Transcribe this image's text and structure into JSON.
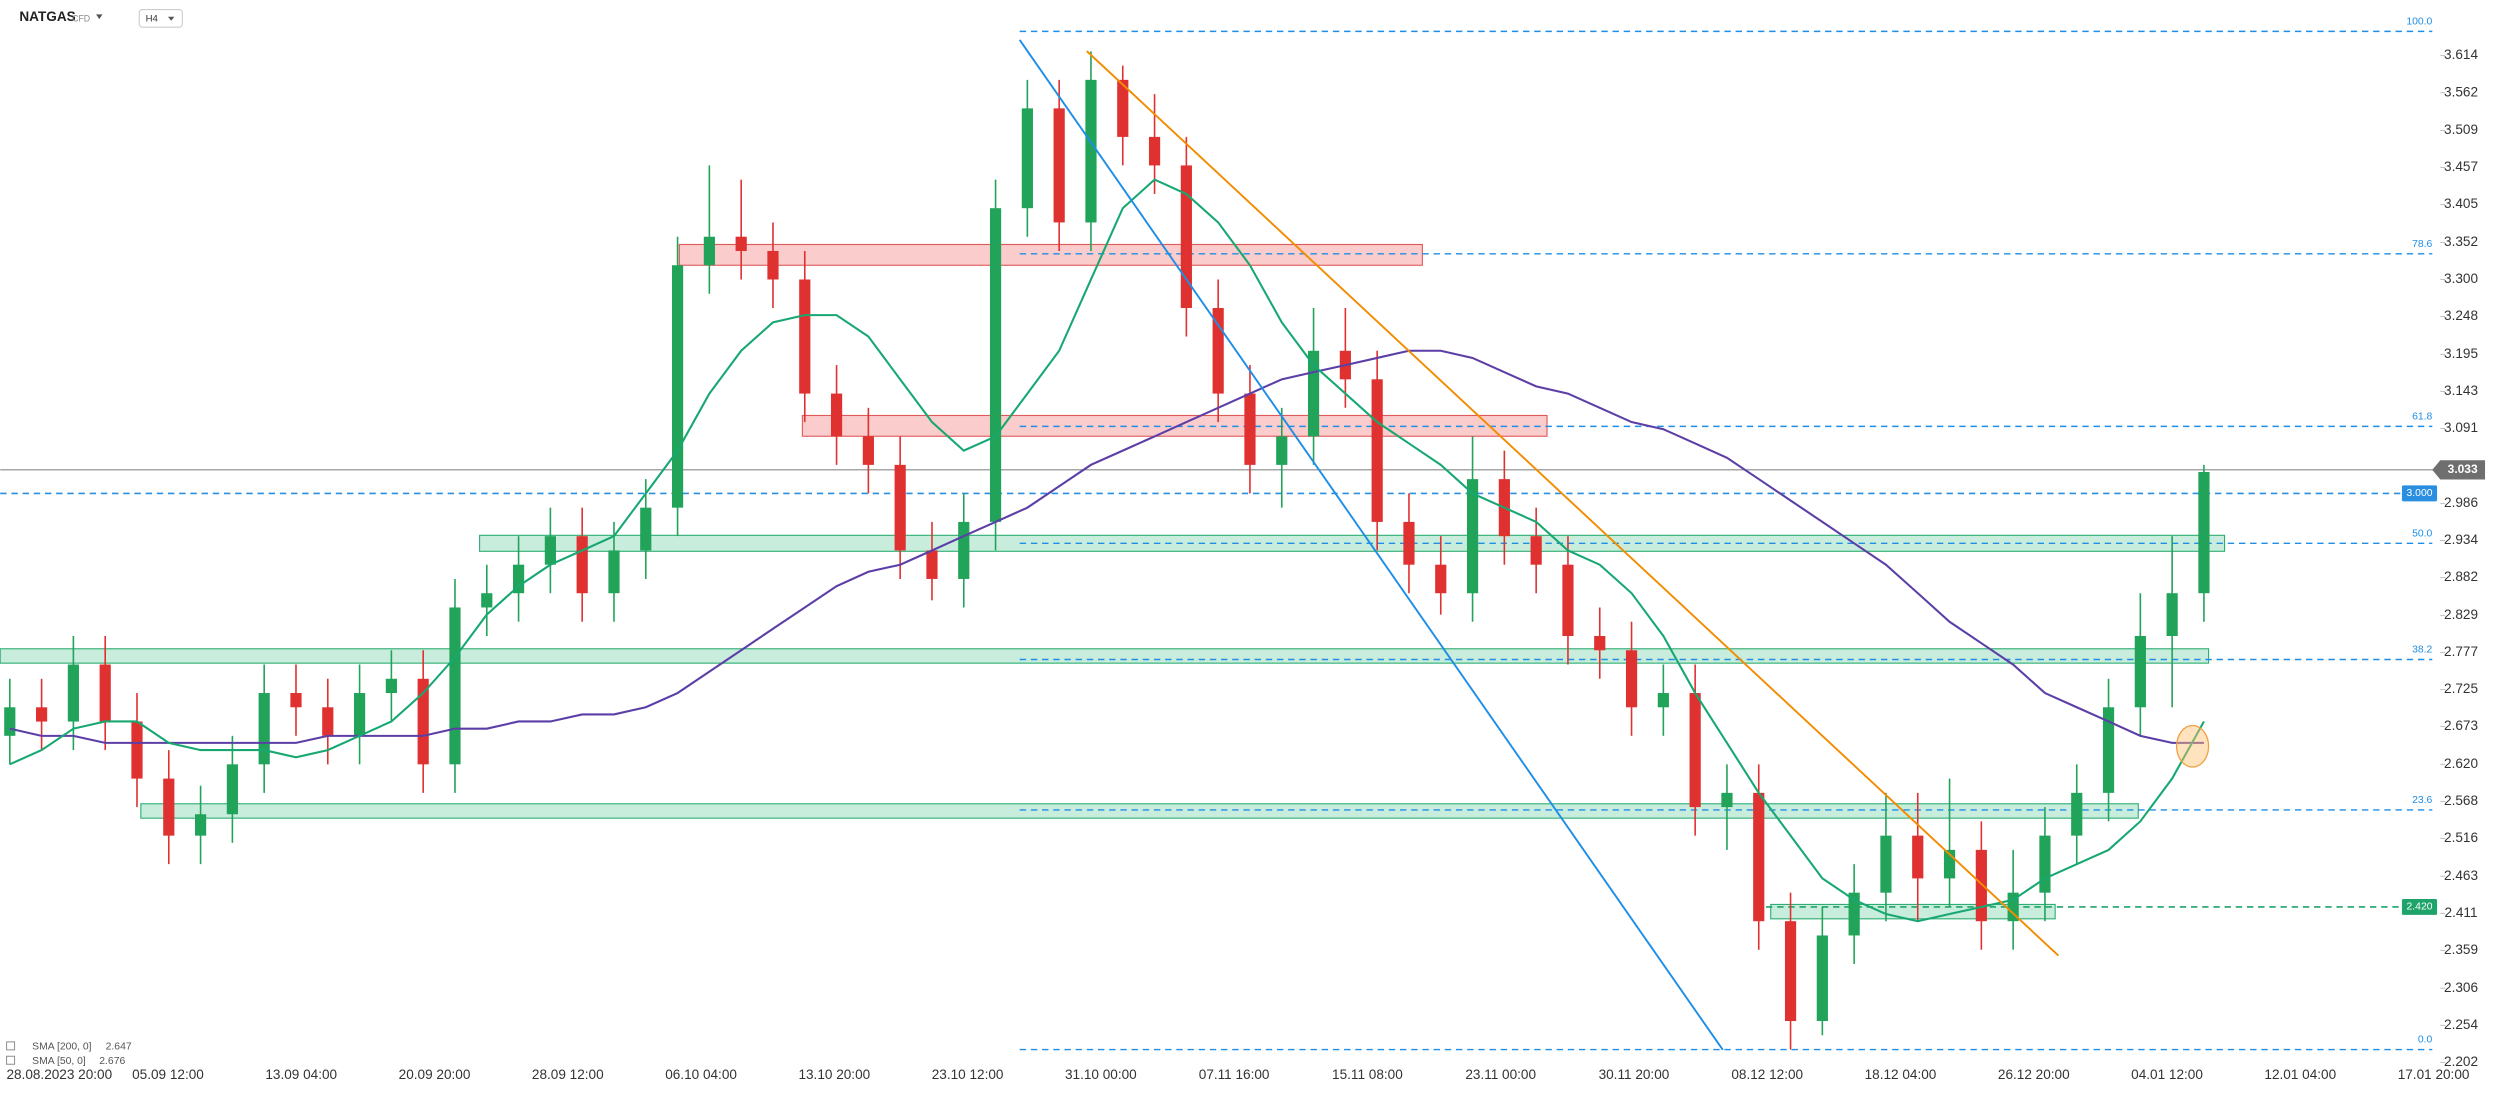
{
  "chart_data": {
    "type": "candlestick",
    "symbol": "NATGAS",
    "instrument": "CFD",
    "timeframe": "H4",
    "ylim": [
      2.168,
      3.692
    ],
    "yticks": [
      3.614,
      3.562,
      3.509,
      3.457,
      3.405,
      3.352,
      {
        "value": 3.3,
        "label": "3.300"
      },
      3.248,
      3.195,
      3.143,
      3.091,
      2.986,
      2.934,
      2.882,
      2.829,
      2.777,
      2.725,
      2.673,
      {
        "value": 2.62,
        "label": "2.620"
      },
      2.568,
      2.516,
      2.463,
      2.411,
      2.359,
      2.306,
      2.254,
      2.202
    ],
    "x_labels": [
      "28.08.2023  20:00",
      "05.09  12:00",
      "13.09  04:00",
      "20.09  20:00",
      "28.09  12:00",
      "06.10  04:00",
      "13.10  20:00",
      "23.10  12:00",
      "31.10  00:00",
      "07.11  16:00",
      "15.11  08:00",
      "23.11  00:00",
      "30.11  20:00",
      "08.12  12:00",
      "18.12  04:00",
      "26.12  20:00",
      "04.01  12:00",
      "12.01  04:00",
      "17.01  20:00"
    ],
    "up_color": "#22a35a",
    "down_color": "#e03131",
    "open": [
      2.66,
      2.7,
      2.68,
      2.76,
      2.68,
      2.6,
      2.52,
      2.55,
      2.62,
      2.72,
      2.7,
      2.66,
      2.72,
      2.74,
      2.62,
      2.84,
      2.86,
      2.9,
      2.94,
      2.86,
      2.92,
      2.98,
      3.32,
      3.36,
      3.34,
      3.3,
      3.14,
      3.08,
      3.04,
      2.92,
      2.88,
      2.96,
      3.4,
      3.54,
      3.38,
      3.58,
      3.5,
      3.46,
      3.26,
      3.14,
      3.04,
      3.08,
      3.2,
      3.16,
      2.96,
      2.9,
      2.86,
      3.02,
      2.94,
      2.9,
      2.8,
      2.78,
      2.7,
      2.72,
      2.56,
      2.58,
      2.4,
      2.26,
      2.38,
      2.44,
      2.52,
      2.46,
      2.5,
      2.4,
      2.44,
      2.52,
      2.58,
      2.7,
      2.8,
      2.86
    ],
    "high": [
      2.74,
      2.74,
      2.8,
      2.8,
      2.72,
      2.64,
      2.59,
      2.66,
      2.76,
      2.76,
      2.74,
      2.76,
      2.78,
      2.78,
      2.88,
      2.9,
      2.94,
      2.98,
      2.98,
      2.96,
      3.02,
      3.36,
      3.46,
      3.44,
      3.38,
      3.34,
      3.18,
      3.12,
      3.08,
      2.96,
      3.0,
      3.44,
      3.58,
      3.58,
      3.62,
      3.6,
      3.56,
      3.5,
      3.3,
      3.18,
      3.12,
      3.26,
      3.26,
      3.2,
      3.0,
      2.94,
      3.08,
      3.06,
      2.98,
      2.94,
      2.84,
      2.82,
      2.76,
      2.76,
      2.62,
      2.62,
      2.44,
      2.42,
      2.48,
      2.58,
      2.58,
      2.6,
      2.54,
      2.5,
      2.56,
      2.62,
      2.74,
      2.86,
      2.94,
      3.04
    ],
    "low": [
      2.62,
      2.64,
      2.64,
      2.64,
      2.56,
      2.48,
      2.48,
      2.51,
      2.58,
      2.66,
      2.62,
      2.62,
      2.68,
      2.58,
      2.58,
      2.8,
      2.82,
      2.86,
      2.82,
      2.82,
      2.88,
      2.94,
      3.28,
      3.3,
      3.26,
      3.1,
      3.04,
      3.0,
      2.88,
      2.85,
      2.84,
      2.92,
      3.36,
      3.34,
      3.34,
      3.46,
      3.42,
      3.22,
      3.1,
      3.0,
      2.98,
      3.04,
      3.12,
      2.92,
      2.86,
      2.83,
      2.82,
      2.9,
      2.86,
      2.76,
      2.74,
      2.66,
      2.66,
      2.52,
      2.5,
      2.36,
      2.22,
      2.24,
      2.34,
      2.4,
      2.4,
      2.42,
      2.36,
      2.36,
      2.4,
      2.48,
      2.54,
      2.66,
      2.7,
      2.82
    ],
    "close": [
      2.7,
      2.68,
      2.76,
      2.68,
      2.6,
      2.52,
      2.55,
      2.62,
      2.72,
      2.7,
      2.66,
      2.72,
      2.74,
      2.62,
      2.84,
      2.86,
      2.9,
      2.94,
      2.86,
      2.92,
      2.98,
      3.32,
      3.36,
      3.34,
      3.3,
      3.14,
      3.08,
      3.04,
      2.92,
      2.88,
      2.96,
      3.4,
      3.54,
      3.38,
      3.58,
      3.5,
      3.46,
      3.26,
      3.14,
      3.04,
      3.08,
      3.2,
      3.16,
      2.96,
      2.9,
      2.86,
      3.02,
      2.94,
      2.9,
      2.8,
      2.78,
      2.7,
      2.72,
      2.56,
      2.58,
      2.4,
      2.26,
      2.38,
      2.44,
      2.52,
      2.46,
      2.5,
      2.4,
      2.44,
      2.52,
      2.58,
      2.7,
      2.8,
      2.86,
      3.03
    ],
    "series": [
      {
        "name": "SMA [200, 0]",
        "legend_value": 2.647,
        "color": "#5b3fa6",
        "values": [
          2.67,
          2.66,
          2.66,
          2.65,
          2.65,
          2.65,
          2.65,
          2.65,
          2.65,
          2.65,
          2.66,
          2.66,
          2.66,
          2.66,
          2.67,
          2.67,
          2.68,
          2.68,
          2.69,
          2.69,
          2.7,
          2.72,
          2.75,
          2.78,
          2.81,
          2.84,
          2.87,
          2.89,
          2.9,
          2.92,
          2.94,
          2.96,
          2.98,
          3.01,
          3.04,
          3.06,
          3.08,
          3.1,
          3.12,
          3.14,
          3.16,
          3.17,
          3.18,
          3.19,
          3.2,
          3.2,
          3.19,
          3.17,
          3.15,
          3.14,
          3.12,
          3.1,
          3.09,
          3.07,
          3.05,
          3.02,
          2.99,
          2.96,
          2.93,
          2.9,
          2.86,
          2.82,
          2.79,
          2.76,
          2.72,
          2.7,
          2.68,
          2.66,
          2.65,
          2.65
        ]
      },
      {
        "name": "SMA [50, 0]",
        "legend_value": 2.676,
        "color": "#17a872",
        "values": [
          2.62,
          2.64,
          2.67,
          2.68,
          2.68,
          2.65,
          2.64,
          2.64,
          2.64,
          2.63,
          2.64,
          2.66,
          2.68,
          2.72,
          2.77,
          2.83,
          2.87,
          2.9,
          2.92,
          2.94,
          3.0,
          3.06,
          3.14,
          3.2,
          3.24,
          3.25,
          3.25,
          3.22,
          3.16,
          3.1,
          3.06,
          3.08,
          3.14,
          3.2,
          3.3,
          3.4,
          3.44,
          3.42,
          3.38,
          3.32,
          3.24,
          3.18,
          3.14,
          3.1,
          3.07,
          3.04,
          3.0,
          2.98,
          2.96,
          2.92,
          2.9,
          2.86,
          2.8,
          2.72,
          2.65,
          2.58,
          2.52,
          2.46,
          2.43,
          2.41,
          2.4,
          2.41,
          2.42,
          2.43,
          2.46,
          2.48,
          2.5,
          2.54,
          2.6,
          2.68
        ]
      }
    ],
    "current_price": {
      "value": 3.033,
      "label": "3.033"
    },
    "levels": [
      {
        "value": 3.0,
        "label": "3.000",
        "color": "#2a8fe0"
      },
      {
        "value": 2.42,
        "label": "2.420",
        "color": "#1ea36a"
      }
    ],
    "fibonacci": [
      {
        "label": "100.0",
        "value": 3.648
      },
      {
        "label": "78.6",
        "value": 3.336
      },
      {
        "label": "61.8",
        "value": 3.094
      },
      {
        "label": "50.0",
        "value": 2.93
      },
      {
        "label": "38.2",
        "value": 2.767
      },
      {
        "label": "23.6",
        "value": 2.556
      },
      {
        "label": "0.0",
        "value": 2.22
      }
    ]
  }
}
